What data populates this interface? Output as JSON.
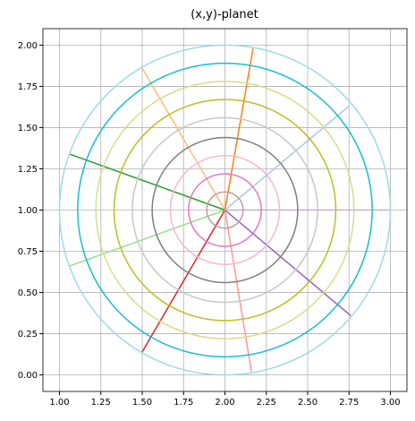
{
  "chart_data": {
    "type": "line",
    "title": "(x,y)-planet",
    "xlim": [
      0.9,
      3.1
    ],
    "ylim": [
      -0.1,
      2.1
    ],
    "grid": true,
    "xticks": [
      {
        "value": 1,
        "label": "1.00"
      },
      {
        "value": 1.25,
        "label": "1.25"
      },
      {
        "value": 1.5,
        "label": "1.50"
      },
      {
        "value": 1.75,
        "label": "1.75"
      },
      {
        "value": 2,
        "label": "2.00"
      },
      {
        "value": 2.25,
        "label": "2.25"
      },
      {
        "value": 2.5,
        "label": "2.50"
      },
      {
        "value": 2.75,
        "label": "2.75"
      },
      {
        "value": 3,
        "label": "3.00"
      }
    ],
    "yticks": [
      {
        "value": 0,
        "label": "0.00"
      },
      {
        "value": 0.25,
        "label": "0.25"
      },
      {
        "value": 0.5,
        "label": "0.50"
      },
      {
        "value": 0.75,
        "label": "0.75"
      },
      {
        "value": 1,
        "label": "1.00"
      },
      {
        "value": 1.25,
        "label": "1.25"
      },
      {
        "value": 1.5,
        "label": "1.50"
      },
      {
        "value": 1.75,
        "label": "1.75"
      },
      {
        "value": 2,
        "label": "2.00"
      }
    ],
    "series": [
      {
        "color": "#aec7e8",
        "x": [
          2,
          2.75
        ],
        "y": [
          1,
          1.63
        ]
      },
      {
        "color": "#ff7f0e",
        "x": [
          2,
          2.17
        ],
        "y": [
          1,
          1.98
        ]
      },
      {
        "color": "#ffbb78",
        "x": [
          2,
          1.5
        ],
        "y": [
          1,
          1.86
        ]
      },
      {
        "color": "#2ca02c",
        "x": [
          2,
          1.06
        ],
        "y": [
          1,
          1.34
        ]
      },
      {
        "color": "#98df8a",
        "x": [
          2,
          1.06
        ],
        "y": [
          1,
          0.66
        ]
      },
      {
        "color": "#d62728",
        "x": [
          2,
          1.5
        ],
        "y": [
          1,
          0.14
        ]
      },
      {
        "color": "#ff9896",
        "x": [
          2,
          2.16
        ],
        "y": [
          1,
          0.02
        ]
      },
      {
        "color": "#9467bd",
        "x": [
          2,
          2.76
        ],
        "y": [
          1,
          0.36
        ]
      },
      {
        "color": "#c5b0d5",
        "x": [
          2,
          3
        ],
        "y": [
          1,
          1
        ]
      }
    ],
    "center": [
      2,
      1
    ],
    "circles": [
      {
        "color": "#c49c94",
        "radius": 0.11
      },
      {
        "color": "#e377c2",
        "radius": 0.22
      },
      {
        "color": "#f7b6d2",
        "radius": 0.33
      },
      {
        "color": "#7f7f7f",
        "radius": 0.44
      },
      {
        "color": "#c7c7c7",
        "radius": 0.56
      },
      {
        "color": "#bcbd22",
        "radius": 0.67
      },
      {
        "color": "#dbdb8d",
        "radius": 0.78
      },
      {
        "color": "#17becf",
        "radius": 0.89
      },
      {
        "color": "#9edae5",
        "radius": 1.0
      }
    ]
  }
}
